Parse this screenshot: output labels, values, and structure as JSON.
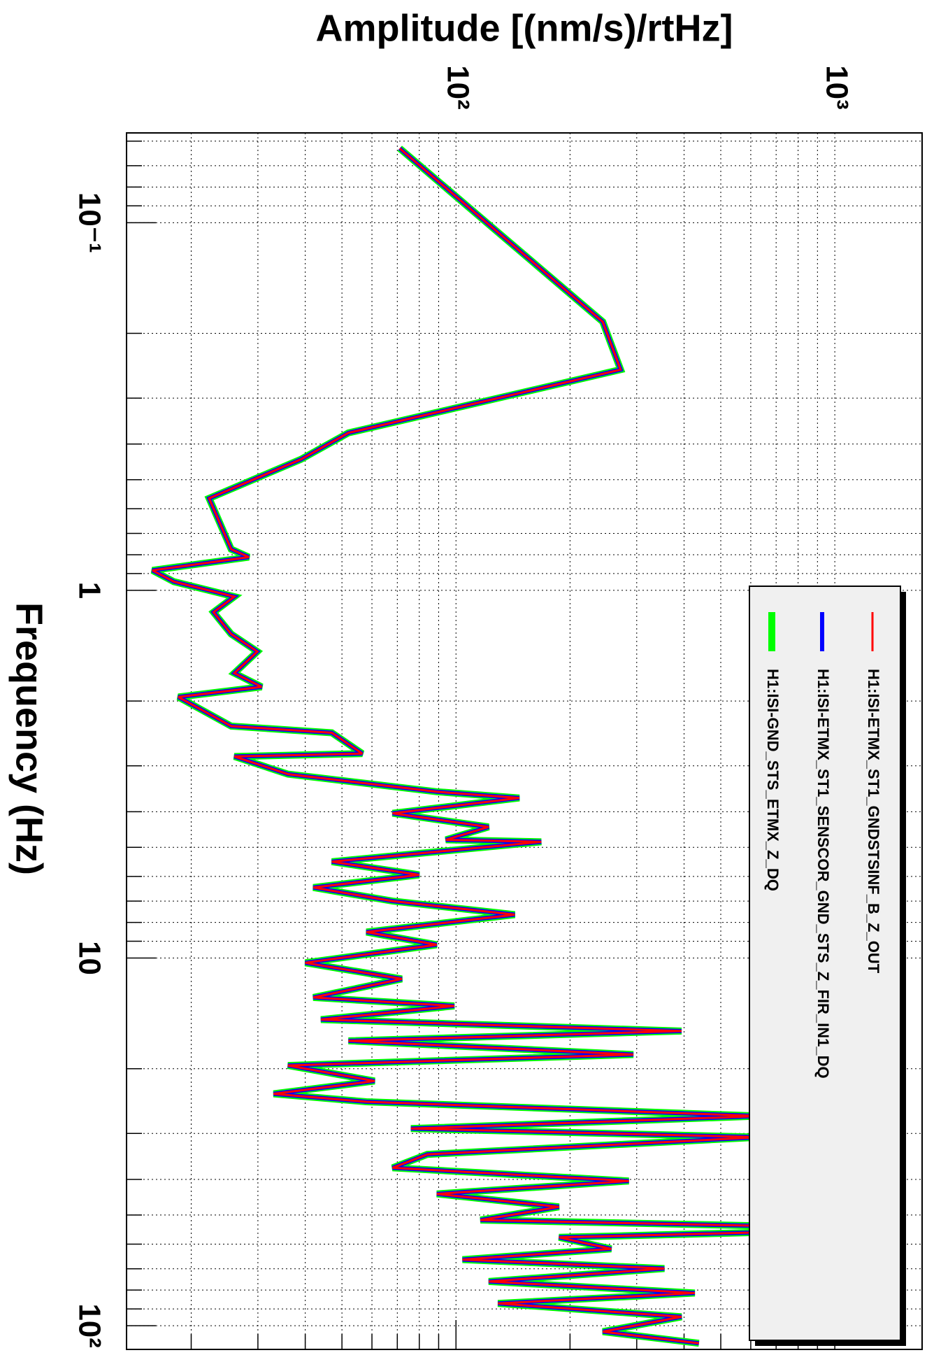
{
  "chart_data": {
    "type": "line",
    "orientation": "rotated",
    "title": "Amplitude [(nm/s)/rtHz]",
    "x_label": "Frequency (Hz)",
    "log_x": true,
    "log_y": true,
    "grid": true,
    "xlim": [
      0.057,
      116
    ],
    "ylim": [
      13.5,
      1700
    ],
    "xticks": [
      {
        "value": 0.1,
        "label": "10⁻¹"
      },
      1,
      10,
      {
        "value": 100,
        "label": "10²"
      }
    ],
    "yticks": [
      {
        "value": 100,
        "label": "10²"
      },
      {
        "value": 1000,
        "label": "10³"
      }
    ],
    "minor_xticks": [
      0.06,
      0.07,
      0.08,
      0.09,
      0.2,
      0.3,
      0.4,
      0.5,
      0.6,
      0.7,
      0.8,
      0.9,
      2,
      3,
      4,
      5,
      6,
      7,
      8,
      9,
      20,
      30,
      40,
      50,
      60,
      70,
      80,
      90
    ],
    "minor_yticks": [
      20,
      30,
      40,
      50,
      60,
      70,
      80,
      90,
      200,
      300,
      400,
      500,
      600,
      700,
      800,
      900
    ],
    "x": [
      0.0628,
      0.186,
      0.251,
      0.373,
      0.44,
      0.562,
      0.773,
      0.812,
      0.882,
      0.947,
      1.04,
      1.147,
      1.315,
      1.467,
      1.68,
      1.83,
      1.95,
      2.34,
      2.44,
      2.78,
      2.83,
      3.16,
      3.53,
      3.67,
      4.04,
      4.4,
      4.77,
      4.83,
      5.47,
      5.94,
      6.43,
      7.0,
      7.62,
      8.5,
      9.2,
      10.3,
      11.4,
      12.8,
      13.5,
      14.7,
      15.8,
      16.8,
      18.3,
      19.6,
      21.6,
      23.4,
      24.6,
      26.9,
      29.1,
      30.7,
      34.2,
      37.2,
      40.4,
      43.8,
      47.5,
      51.6,
      54.5,
      57.5,
      61.8,
      66.1,
      69.9,
      75.8,
      81.5,
      87.0,
      94.6,
      103.8,
      111.6
    ],
    "series": [
      {
        "name": "H1:ISI-GND_STS_ETMX_Z_DQ",
        "color": "#00ff00",
        "width": 10,
        "values": [
          71,
          244,
          272,
          52,
          39,
          22.3,
          25.5,
          28.4,
          15.8,
          18,
          26,
          22.9,
          25.5,
          29.9,
          26,
          30.7,
          18.5,
          25.5,
          47,
          56.6,
          26,
          36,
          89,
          147,
          68,
          122,
          94,
          168,
          47,
          80,
          42,
          68,
          143,
          58,
          89,
          40,
          72,
          42,
          99,
          44,
          394,
          52,
          294,
          36,
          61,
          33,
          58,
          635,
          76,
          635,
          84,
          68,
          286,
          89,
          187,
          116,
          1530,
          187,
          257,
          104,
          355,
          122,
          427,
          129,
          394,
          244,
          438
        ]
      },
      {
        "name": "H1:ISI-ETMX_ST1_SENSCOR_GND_STS_Z_FIR_IN1_DQ",
        "color": "#0000ff",
        "width": 6,
        "values": [
          71,
          244,
          272,
          52,
          39,
          22.3,
          25.5,
          28.4,
          15.8,
          18,
          26,
          22.9,
          25.5,
          29.9,
          26,
          30.7,
          18.5,
          25.5,
          47,
          56.6,
          26,
          36,
          89,
          147,
          68,
          122,
          94,
          168,
          47,
          80,
          42,
          68,
          143,
          58,
          89,
          40,
          72,
          42,
          99,
          44,
          394,
          52,
          294,
          36,
          61,
          33,
          58,
          635,
          76,
          635,
          84,
          68,
          286,
          89,
          187,
          116,
          1530,
          187,
          257,
          104,
          355,
          122,
          427,
          129,
          394,
          244,
          438
        ]
      },
      {
        "name": "H1:ISI-ETMX_ST1_GNDSTSINF_B_Z_OUT",
        "color": "#ff0000",
        "width": 3,
        "values": [
          71,
          244,
          272,
          52,
          39,
          22.3,
          25.5,
          28.4,
          15.8,
          18,
          26,
          22.9,
          25.5,
          29.9,
          26,
          30.7,
          18.5,
          25.5,
          47,
          56.6,
          26,
          36,
          89,
          147,
          68,
          122,
          94,
          168,
          47,
          80,
          42,
          68,
          143,
          58,
          89,
          40,
          72,
          42,
          99,
          44,
          394,
          52,
          294,
          36,
          61,
          33,
          58,
          635,
          76,
          635,
          84,
          68,
          286,
          89,
          187,
          116,
          1530,
          187,
          257,
          104,
          355,
          122,
          427,
          129,
          394,
          244,
          438
        ]
      }
    ]
  }
}
